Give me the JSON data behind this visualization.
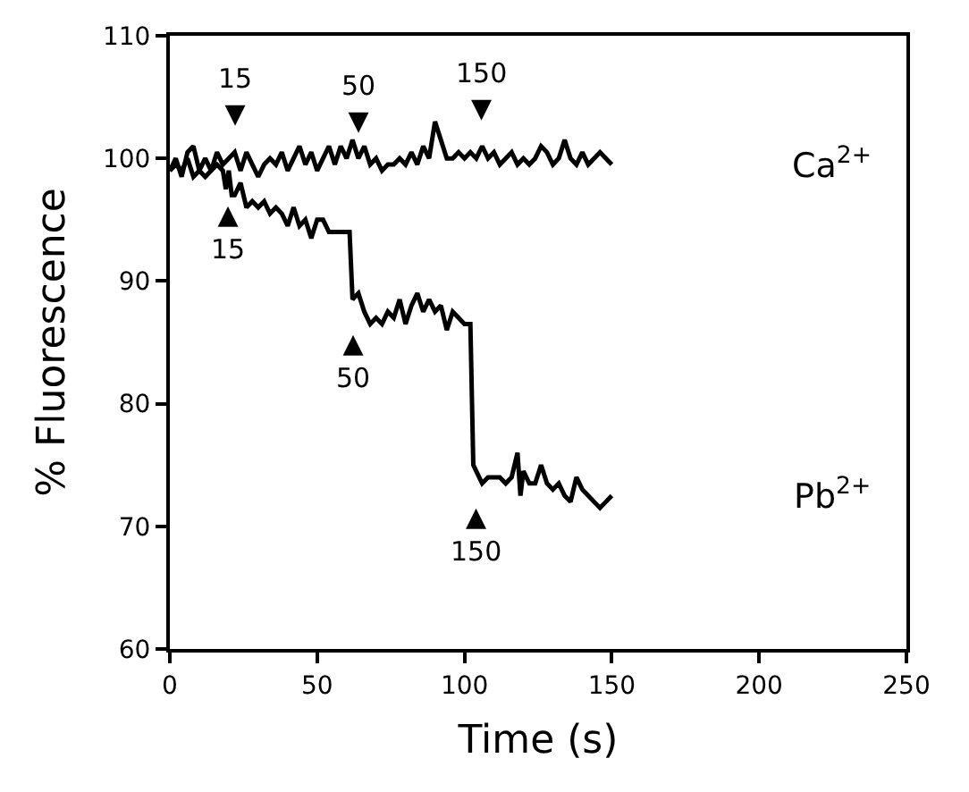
{
  "chart_data": {
    "type": "line",
    "xlabel": "Time (s)",
    "ylabel": "% Fluorescence",
    "xlim": [
      0,
      250
    ],
    "xticks": [
      0,
      50,
      100,
      150,
      200,
      250
    ],
    "ylim": [
      60,
      110
    ],
    "yticks": [
      60,
      70,
      80,
      90,
      100,
      110
    ],
    "legend": false,
    "marker": "none",
    "line_style": "solid",
    "series": [
      {
        "name": "Ca$^{2+}$",
        "color": "#000000",
        "x": [
          0,
          2,
          4,
          6,
          8,
          10,
          12,
          14,
          16,
          18,
          20,
          22,
          24,
          26,
          28,
          30,
          32,
          34,
          36,
          38,
          40,
          42,
          44,
          46,
          48,
          50,
          52,
          54,
          56,
          58,
          60,
          62,
          64,
          66,
          68,
          70,
          72,
          74,
          76,
          78,
          80,
          82,
          84,
          86,
          88,
          90,
          92,
          94,
          96,
          98,
          100,
          102,
          104,
          106,
          108,
          110,
          112,
          114,
          116,
          118,
          120,
          122,
          124,
          126,
          128,
          130,
          132,
          134,
          136,
          138,
          140,
          142,
          144,
          146,
          148,
          150
        ],
        "values": [
          99,
          100,
          98.5,
          100.5,
          101,
          99,
          100,
          99,
          100.5,
          99.5,
          100,
          100.5,
          99,
          100.5,
          99.5,
          98.5,
          99.5,
          100,
          99.5,
          100.5,
          99,
          100,
          101,
          99.5,
          100.5,
          99,
          100,
          101,
          99.5,
          101,
          100,
          101.5,
          100,
          101,
          99.5,
          100,
          99,
          99.5,
          99.5,
          100,
          99.5,
          100.5,
          99.5,
          101,
          100,
          103,
          101.5,
          100,
          100,
          100.5,
          100,
          100.5,
          100,
          101,
          100,
          100.5,
          99.5,
          100,
          100.5,
          99.5,
          100,
          99.5,
          100,
          101,
          100.5,
          99.5,
          100,
          101.5,
          100,
          99.5,
          100.5,
          99.5,
          100,
          100.5,
          100,
          99.5
        ]
      },
      {
        "name": "Pb$^{2+}$",
        "color": "#000000",
        "x": [
          0,
          2,
          4,
          6,
          8,
          10,
          12,
          14,
          16,
          18,
          19,
          20,
          21,
          22,
          24,
          26,
          28,
          30,
          32,
          34,
          36,
          38,
          40,
          42,
          44,
          46,
          48,
          50,
          52,
          54,
          56,
          58,
          60,
          61,
          62,
          64,
          66,
          68,
          70,
          72,
          74,
          76,
          78,
          80,
          82,
          84,
          86,
          88,
          90,
          92,
          94,
          96,
          98,
          100,
          102,
          103,
          104,
          106,
          108,
          110,
          112,
          114,
          116,
          118,
          119,
          120,
          122,
          124,
          126,
          128,
          130,
          132,
          134,
          136,
          138,
          140,
          142,
          144,
          146,
          148,
          150
        ],
        "values": [
          99,
          99.5,
          99,
          100,
          98.5,
          99,
          98.5,
          99,
          99.5,
          99,
          97.5,
          99,
          97,
          97,
          98,
          96,
          96.5,
          96,
          96.5,
          95.5,
          96,
          95.5,
          94.5,
          96,
          94.5,
          95,
          93.5,
          95,
          95,
          94,
          94,
          94,
          94,
          94,
          88.5,
          89,
          87.5,
          86.5,
          87,
          86.5,
          87.5,
          87,
          88.5,
          86.5,
          88,
          89,
          87.5,
          88.5,
          87.5,
          88,
          86,
          87.5,
          87,
          86.5,
          86.5,
          75,
          74.5,
          73.5,
          74,
          74,
          74,
          73.5,
          74,
          76,
          72.5,
          74.5,
          73.5,
          73.5,
          75,
          73.5,
          73,
          73.5,
          72.5,
          72,
          74,
          73,
          72.5,
          72,
          71.5,
          72,
          72.5
        ]
      }
    ],
    "annotations": [
      {
        "text": "15\n▼",
        "x": 22,
        "y": 100.5
      },
      {
        "text": "50\n▼",
        "x": 64,
        "y": 100
      },
      {
        "text": "150\n▼",
        "x": 106,
        "y": 101
      },
      {
        "text": "▲\n15",
        "x": 20,
        "y": 99
      },
      {
        "text": "▲\n50",
        "x": 62,
        "y": 88.5
      },
      {
        "text": "▲\n150",
        "x": 104,
        "y": 74.5
      }
    ]
  }
}
